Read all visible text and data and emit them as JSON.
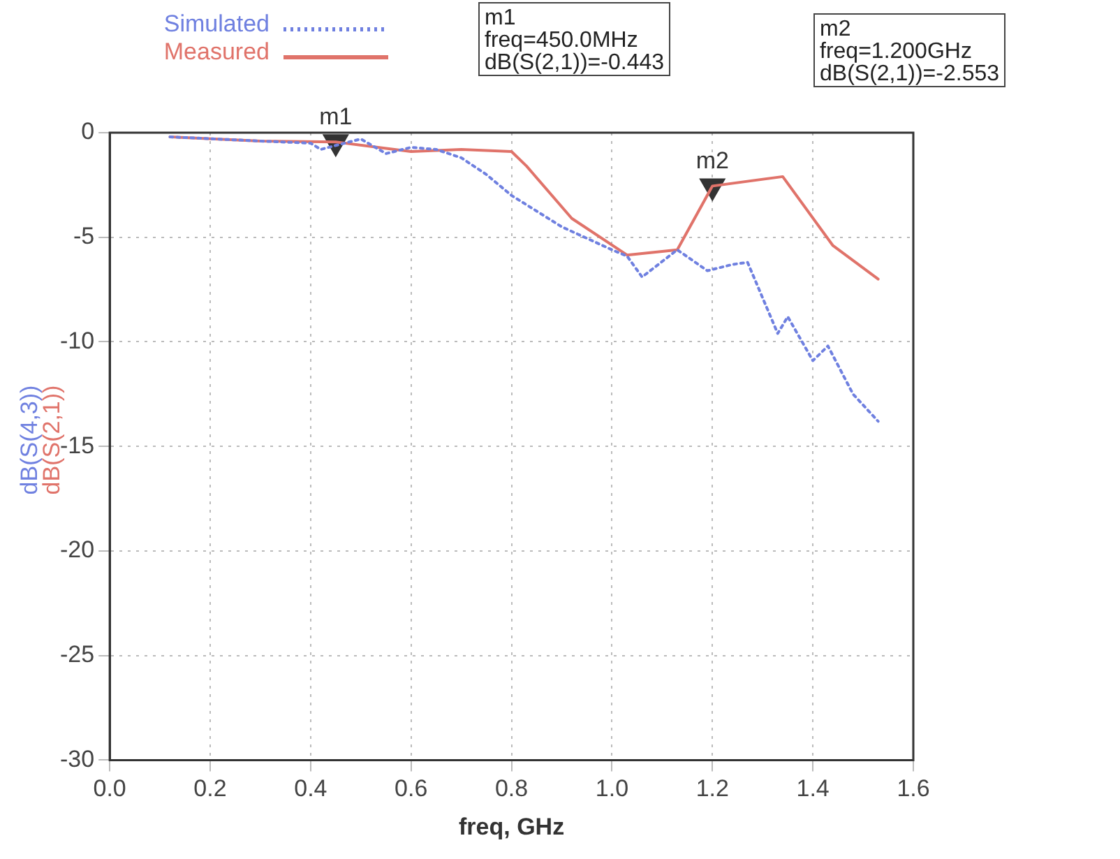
{
  "chart_data": {
    "type": "line",
    "xlabel": "freq, GHz",
    "ylabel": "dB(S(4,3))\ndB(S(2,1))",
    "xlim": [
      0,
      1.6
    ],
    "xticks": [
      {
        "value": 0,
        "label": "0.0"
      },
      0.2,
      0.4,
      0.6,
      0.8,
      {
        "value": 1,
        "label": "1.0"
      },
      1.2,
      1.4,
      1.6
    ],
    "ylim": [
      -30,
      0
    ],
    "yticks": [
      -30,
      -25,
      -20,
      -15,
      -10,
      -5,
      0
    ],
    "grid": true,
    "legend": "top left",
    "marker": "none",
    "series": [
      {
        "name": "Simulated",
        "color": "#6f80e0",
        "line_style": "dotted",
        "x": [
          0.12,
          0.3,
          0.4,
          0.42,
          0.5,
          0.55,
          0.6,
          0.65,
          0.7,
          0.75,
          0.8,
          0.9,
          1.0,
          1.03,
          1.06,
          1.13,
          1.19,
          1.24,
          1.27,
          1.33,
          1.35,
          1.4,
          1.43,
          1.48,
          1.53
        ],
        "values": [
          -0.2,
          -0.4,
          -0.5,
          -0.8,
          -0.3,
          -1.0,
          -0.7,
          -0.8,
          -1.2,
          -2.0,
          -3.0,
          -4.5,
          -5.6,
          -5.9,
          -6.9,
          -5.6,
          -6.6,
          -6.3,
          -6.2,
          -9.6,
          -8.8,
          -10.9,
          -10.2,
          -12.5,
          -13.8
        ]
      },
      {
        "name": "Measured",
        "color": "#e0736a",
        "line_style": "solid",
        "x": [
          0.12,
          0.3,
          0.45,
          0.6,
          0.7,
          0.8,
          0.83,
          0.92,
          1.03,
          1.13,
          1.2,
          1.34,
          1.44,
          1.53
        ],
        "values": [
          -0.2,
          -0.4,
          -0.44,
          -0.9,
          -0.8,
          -0.9,
          -1.6,
          -4.1,
          -5.85,
          -5.6,
          -2.55,
          -2.1,
          -5.4,
          -7.0
        ]
      },
      {
        "type": "scatter",
        "color": "#333333",
        "marker": "triangle",
        "x": [
          0.45,
          1.2
        ],
        "values": [
          -0.443,
          -2.553
        ]
      }
    ],
    "annotations": [
      {
        "text": "m1",
        "x": 0.45,
        "y": -0.443
      },
      {
        "text": "m2",
        "x": 1.2,
        "y": -2.553
      },
      "m1\nfreq=450.0MHz\ndB(S(2,1))=-0.443",
      "m2\nfreq=1.200GHz\ndB(S(2,1))=-2.553"
    ]
  }
}
